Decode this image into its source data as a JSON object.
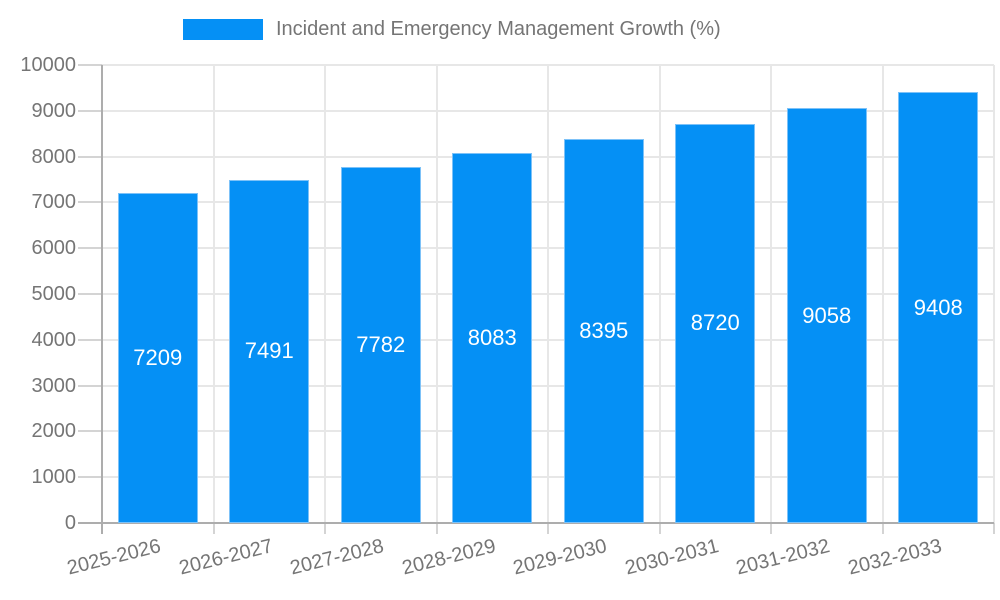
{
  "chart_data": {
    "type": "bar",
    "title": "Incident and Emergency Management Growth (%)",
    "legend_position": "top-center",
    "categories": [
      "2025-2026",
      "2026-2027",
      "2027-2028",
      "2028-2029",
      "2029-2030",
      "2030-2031",
      "2031-2032",
      "2032-2033"
    ],
    "values": [
      7209,
      7491,
      7782,
      8083,
      8395,
      8720,
      9058,
      9408
    ],
    "bar_labels": [
      "7209",
      "7491",
      "7782",
      "8083",
      "8395",
      "8720",
      "9058",
      "9408"
    ],
    "xlabel": "",
    "ylabel": "",
    "ylim": [
      0,
      10000
    ],
    "ytick_step": 1000,
    "yticks": [
      "0",
      "1000",
      "2000",
      "3000",
      "4000",
      "5000",
      "6000",
      "7000",
      "8000",
      "9000",
      "10000"
    ],
    "grid": true,
    "x_label_rotation_deg": -14,
    "colors": {
      "bar_fill": "#0590F5",
      "bar_border": "#7DC2F8",
      "bar_label": "#FFFFFF",
      "axis_text": "#757575",
      "grid_line": "#E7E7E7",
      "axis_line": "#ADADAD",
      "tick_line": "#D4D4D4",
      "background": "#FFFFFF"
    }
  }
}
